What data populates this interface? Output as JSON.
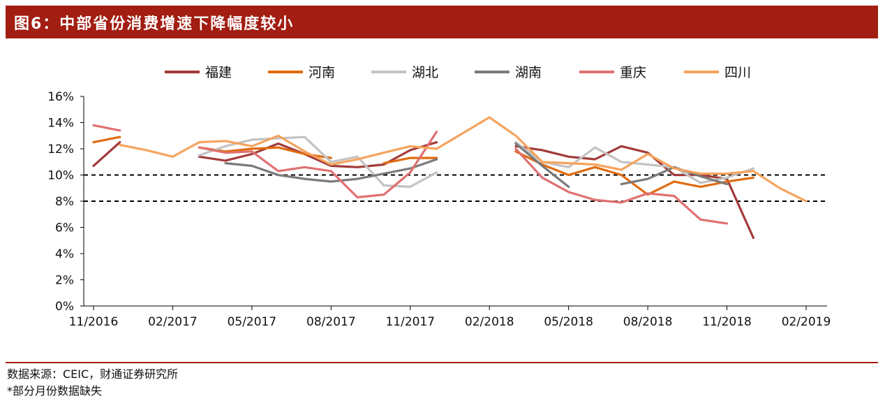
{
  "header": {
    "title": "图6：中部省份消费增速下降幅度较小"
  },
  "footer": {
    "source": "数据来源：CEIC，财通证券研究所",
    "note": "*部分月份数据缺失"
  },
  "chart_data": {
    "type": "line",
    "x": [
      "11/2016",
      "12/2016",
      "01/2017",
      "02/2017",
      "03/2017",
      "04/2017",
      "05/2017",
      "06/2017",
      "07/2017",
      "08/2017",
      "09/2017",
      "10/2017",
      "11/2017",
      "12/2017",
      "01/2018",
      "02/2018",
      "03/2018",
      "04/2018",
      "05/2018",
      "06/2018",
      "07/2018",
      "08/2018",
      "09/2018",
      "10/2018",
      "11/2018",
      "12/2018",
      "01/2019",
      "02/2019"
    ],
    "x_tick_labels": [
      "11/2016",
      "02/2017",
      "05/2017",
      "08/2017",
      "11/2017",
      "02/2018",
      "05/2018",
      "08/2018",
      "11/2018",
      "02/2019"
    ],
    "ylim": [
      0,
      16
    ],
    "y_tick_labels": [
      "0%",
      "2%",
      "4%",
      "6%",
      "8%",
      "10%",
      "12%",
      "14%",
      "16%"
    ],
    "reference_lines": [
      10,
      8
    ],
    "legend": "top",
    "series": [
      {
        "name": "福建",
        "color": "#a33a3a",
        "values": [
          10.7,
          12.5,
          null,
          null,
          11.4,
          11.1,
          11.6,
          12.4,
          11.6,
          10.7,
          10.6,
          10.8,
          11.9,
          12.5,
          null,
          null,
          12.2,
          11.9,
          11.4,
          11.2,
          12.2,
          11.7,
          10.0,
          10.0,
          9.7,
          5.2,
          null,
          null
        ]
      },
      {
        "name": "河南",
        "color": "#e06b10",
        "values": [
          12.5,
          12.9,
          null,
          null,
          12.1,
          11.8,
          12.0,
          12.1,
          11.6,
          11.3,
          null,
          10.9,
          11.3,
          11.3,
          null,
          null,
          11.8,
          10.8,
          10.0,
          10.6,
          10.0,
          8.5,
          9.5,
          9.1,
          9.5,
          9.8,
          null,
          null
        ]
      },
      {
        "name": "湖北",
        "color": "#c3c3c3",
        "values": [
          null,
          null,
          null,
          null,
          11.5,
          12.2,
          12.7,
          12.8,
          12.9,
          11.0,
          11.4,
          9.2,
          9.1,
          10.2,
          null,
          null,
          12.5,
          11.0,
          10.6,
          12.1,
          11.0,
          10.8,
          10.6,
          9.4,
          9.8,
          10.5,
          null,
          null
        ]
      },
      {
        "name": "湖南",
        "color": "#7a7a7a",
        "values": [
          null,
          null,
          null,
          null,
          null,
          10.9,
          10.7,
          10.0,
          9.7,
          9.5,
          9.7,
          10.1,
          10.5,
          11.2,
          null,
          null,
          12.4,
          10.7,
          9.1,
          null,
          9.3,
          9.7,
          10.6,
          9.9,
          9.3,
          null,
          null,
          null
        ]
      },
      {
        "name": "重庆",
        "color": "#e07070",
        "values": [
          13.8,
          13.4,
          null,
          null,
          12.1,
          11.7,
          11.8,
          10.3,
          10.6,
          10.3,
          8.3,
          8.5,
          10.2,
          13.3,
          null,
          null,
          12.0,
          9.8,
          8.7,
          8.1,
          7.9,
          8.6,
          8.4,
          6.6,
          6.3,
          null,
          null,
          null
        ]
      },
      {
        "name": "四川",
        "color": "#f5a45e",
        "values": [
          null,
          12.3,
          11.9,
          11.4,
          12.5,
          12.6,
          12.2,
          13.0,
          11.8,
          10.8,
          11.2,
          11.7,
          12.2,
          12.0,
          13.2,
          14.4,
          13.0,
          11.0,
          10.9,
          10.8,
          10.4,
          11.6,
          10.5,
          10.1,
          10.1,
          10.3,
          9.0,
          8.0
        ]
      }
    ]
  }
}
